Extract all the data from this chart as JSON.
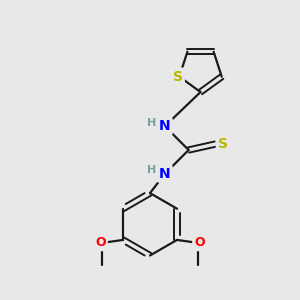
{
  "background_color": "#e8e8e8",
  "atom_colors": {
    "S": "#b8b800",
    "N": "#0000ff",
    "O": "#ff0000",
    "C": "#000000",
    "H_label": "#7a9fa0"
  },
  "bond_color": "#1a1a1a",
  "figsize": [
    3.0,
    3.0
  ],
  "dpi": 100
}
